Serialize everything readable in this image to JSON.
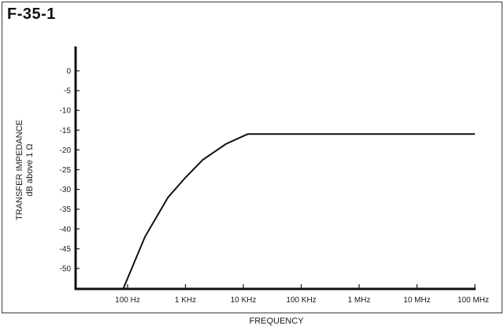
{
  "figure": {
    "label": "F-35-1"
  },
  "colors": {
    "ink": "#111111",
    "frame": "#3a3a3a",
    "background": "#ffffff"
  },
  "chart_data": {
    "type": "line",
    "title": "",
    "xlabel": "FREQUENCY",
    "ylabel": [
      "TRANSFER IMPEDANCE",
      "dB above 1 Ω"
    ],
    "x_scale": "log",
    "x_unit": "Hz",
    "xlim": [
      30,
      100000000
    ],
    "ylim": [
      -55,
      5
    ],
    "y_ticks": [
      0,
      -5,
      -10,
      -15,
      -20,
      -25,
      -30,
      -35,
      -40,
      -45,
      -50
    ],
    "x_ticks": [
      {
        "value": 100,
        "label": "100 Hz"
      },
      {
        "value": 1000,
        "label": "1 KHz"
      },
      {
        "value": 10000,
        "label": "10 KHz"
      },
      {
        "value": 100000,
        "label": "100 KHz"
      },
      {
        "value": 1000000,
        "label": "1 MHz"
      },
      {
        "value": 10000000,
        "label": "10 MHz"
      },
      {
        "value": 100000000,
        "label": "100 MHz"
      }
    ],
    "grid": false,
    "series": [
      {
        "x": [
          85,
          100,
          200,
          500,
          1000,
          2000,
          5000,
          10000,
          12000,
          100000,
          1000000,
          10000000,
          100000000
        ],
        "y": [
          -55,
          -52.5,
          -42,
          -32,
          -27,
          -22.5,
          -18.5,
          -16.5,
          -16,
          -16,
          -16,
          -16,
          -16
        ]
      }
    ]
  }
}
